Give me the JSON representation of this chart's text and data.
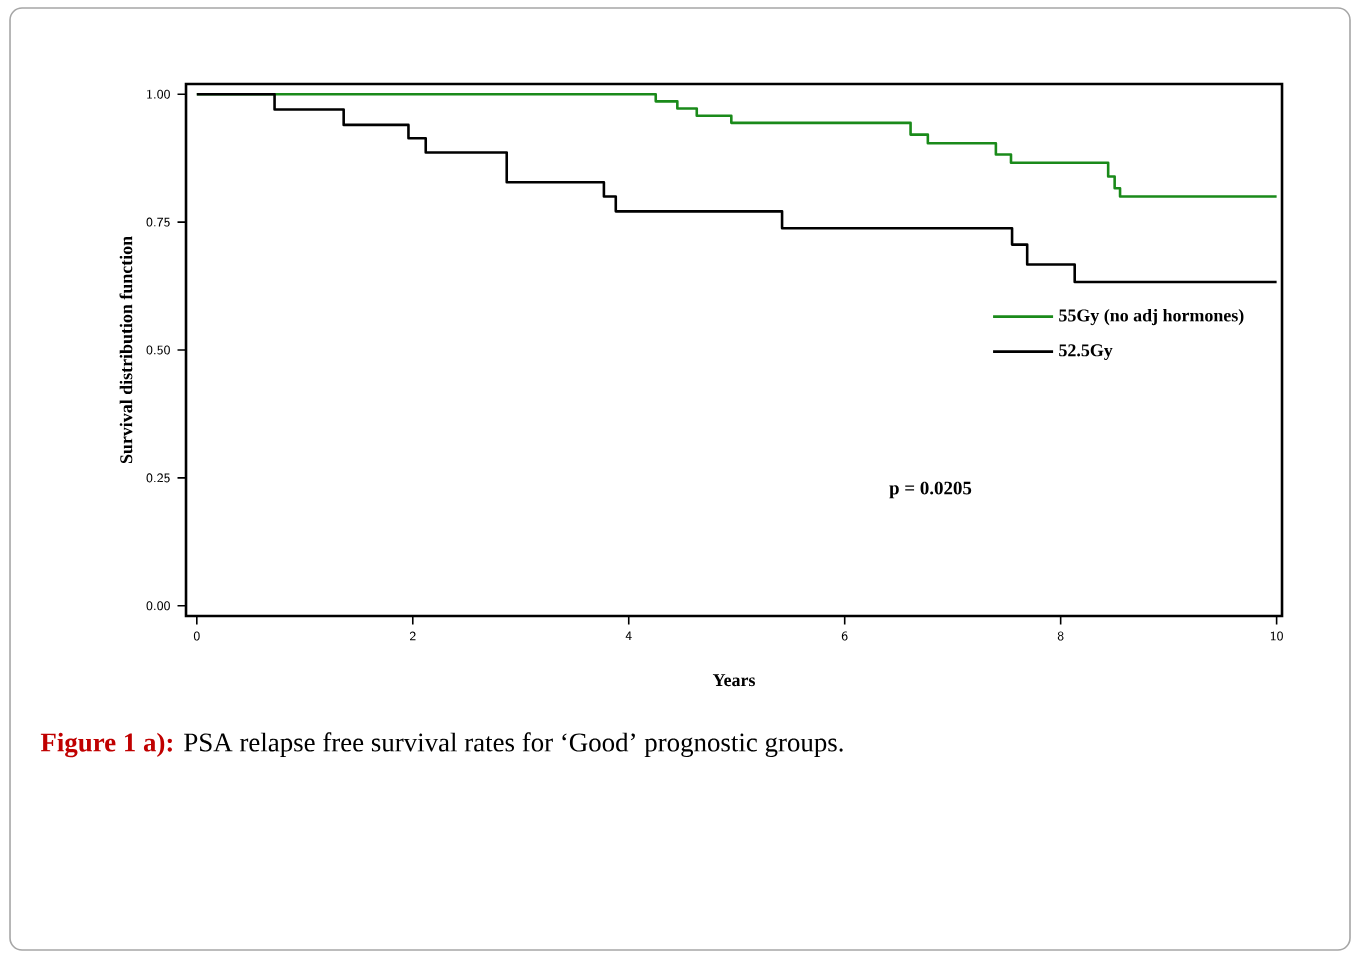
{
  "chart_data": {
    "type": "step",
    "xlabel": "Years",
    "ylabel": "Survival distribution function",
    "xlim": [
      -0.1,
      10.05
    ],
    "ylim": [
      -0.02,
      1.02
    ],
    "xticks": [
      0,
      2,
      4,
      6,
      8,
      10
    ],
    "yticks": [
      {
        "value": 0,
        "label": "0.00"
      },
      {
        "value": 0.25,
        "label": "0.25"
      },
      {
        "value": 0.5,
        "label": "0.50"
      },
      {
        "value": 0.75,
        "label": "0.75"
      },
      {
        "value": 1,
        "label": "1.00"
      }
    ],
    "legend": "right",
    "grid": false,
    "series": [
      {
        "name": "55Gy (no adj hormones)",
        "color": "#1a8a1a",
        "x": [
          0,
          4.25,
          4.45,
          4.63,
          4.95,
          6.61,
          6.77,
          7.4,
          7.54,
          8.44,
          8.5,
          8.55,
          10
        ],
        "values": [
          1.0,
          0.986,
          0.972,
          0.958,
          0.944,
          0.921,
          0.904,
          0.882,
          0.866,
          0.839,
          0.816,
          0.8,
          0.8
        ]
      },
      {
        "name": "52.5Gy",
        "color": "#000000",
        "x": [
          0,
          0.72,
          1.36,
          1.96,
          2.12,
          2.87,
          3.77,
          3.88,
          5.42,
          7.55,
          7.69,
          8.13,
          10
        ],
        "values": [
          1.0,
          0.97,
          0.94,
          0.914,
          0.886,
          0.828,
          0.8,
          0.771,
          0.738,
          0.706,
          0.667,
          0.633,
          0.633
        ]
      }
    ],
    "annotations": [
      "p = 0.0205",
      "Figure 1 a):",
      "PSA relapse free survival rates for ‘Good’ prognostic groups."
    ]
  }
}
